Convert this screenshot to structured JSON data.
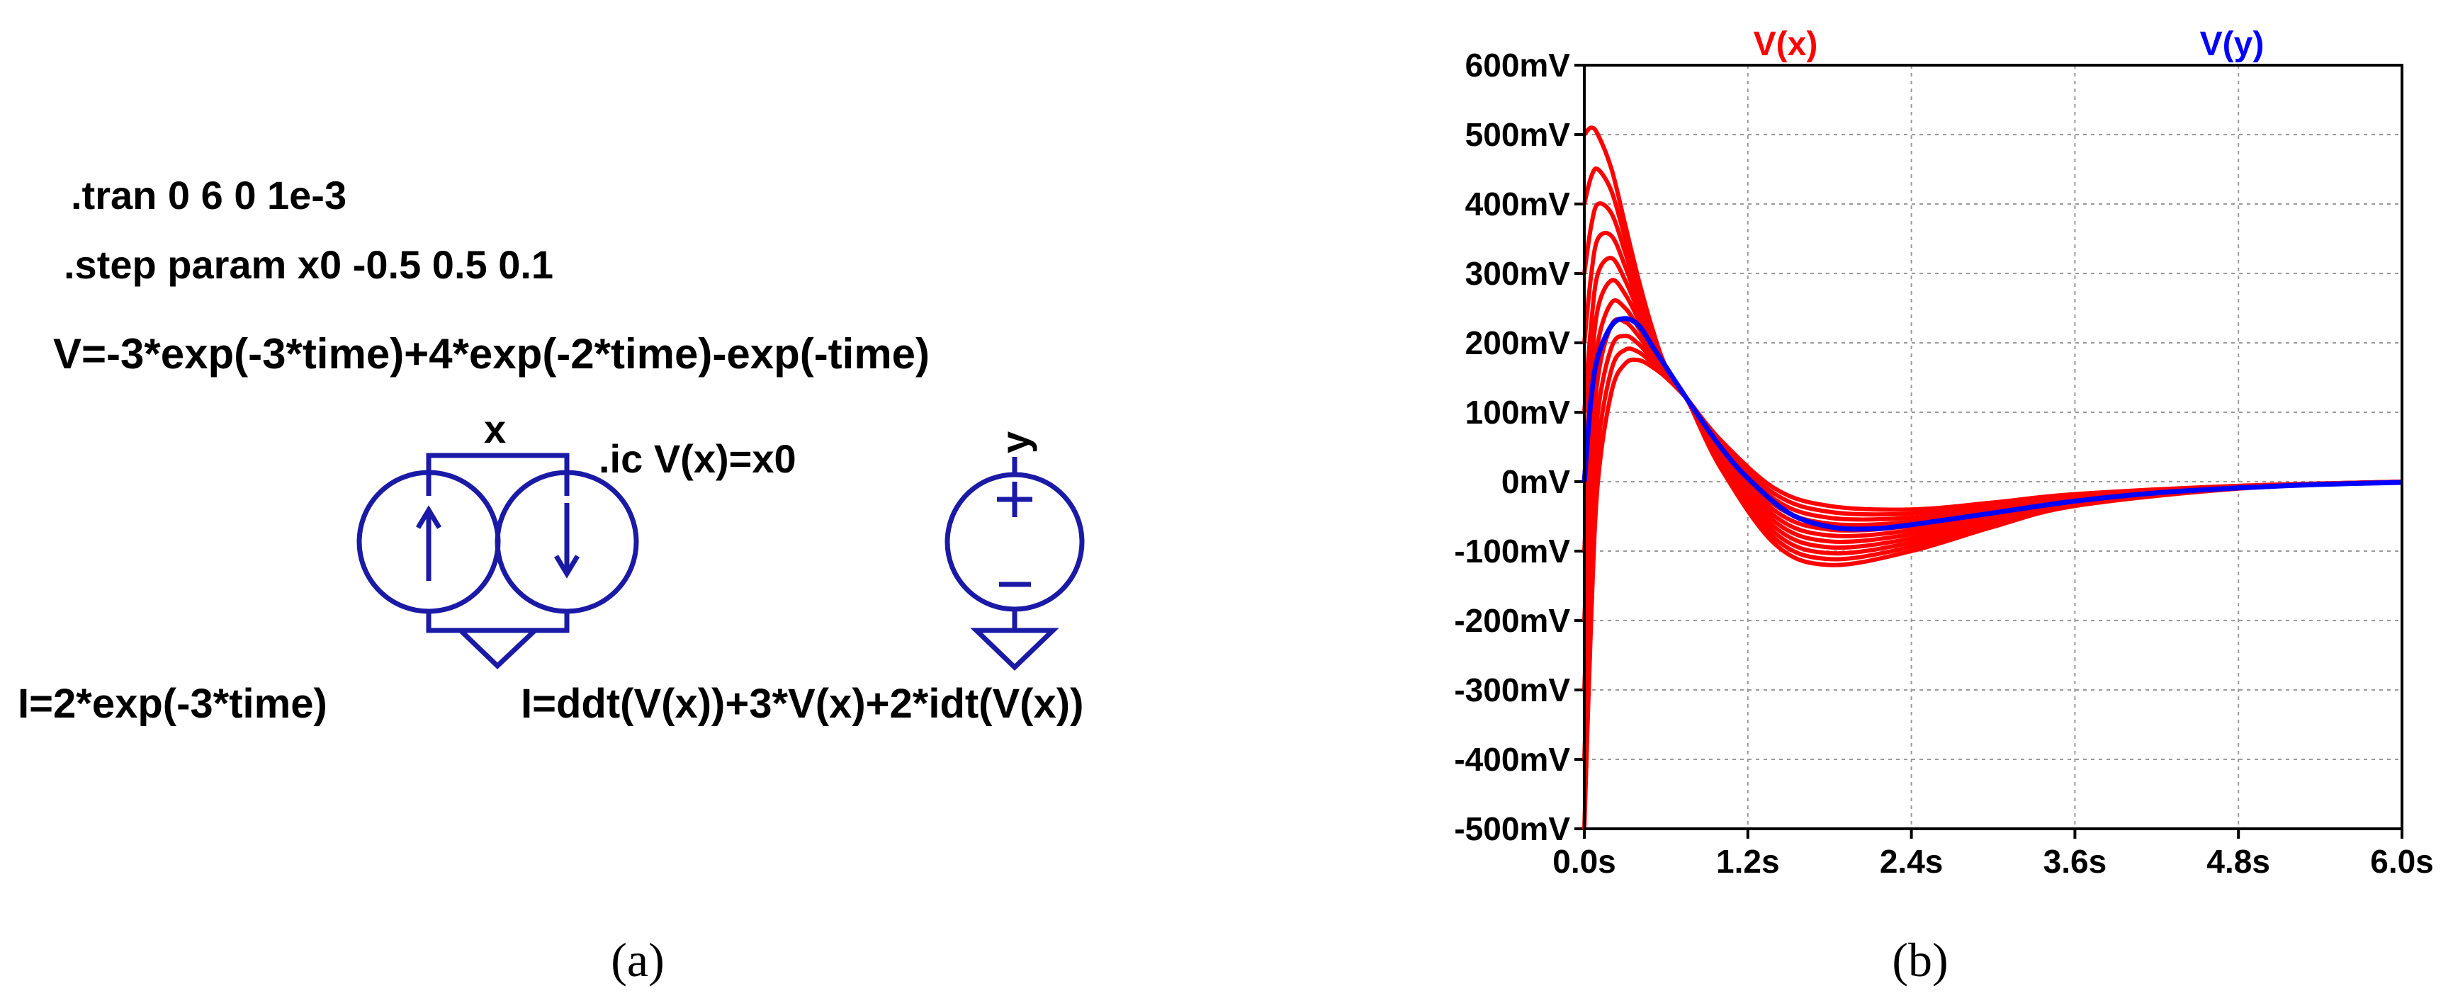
{
  "schematic": {
    "directive_tran": ".tran 0 6 0 1e-3",
    "directive_step": ".step param x0 -0.5 0.5 0.1",
    "source_v_expr": "V=-3*exp(-3*time)+4*exp(-2*time)-exp(-time)",
    "node_x_label": "x",
    "node_y_label": "y",
    "ic_directive": ".ic V(x)=x0",
    "source_i1_expr": "I=2*exp(-3*time)",
    "source_i2_expr": "I=ddt(V(x))+3*V(x)+2*idt(V(x))",
    "component_color": "#1a1aa6"
  },
  "captions": {
    "left": "(a)",
    "right": "(b)"
  },
  "chart_data": {
    "type": "line",
    "title": "",
    "xlabel": "",
    "ylabel": "",
    "xlim": [
      0,
      6
    ],
    "ylim": [
      -0.5,
      0.6
    ],
    "grid": true,
    "legend_placement": "top",
    "x_ticks": [
      0,
      1.2,
      2.4,
      3.6,
      4.8,
      6.0
    ],
    "x_tick_labels": [
      "0.0s",
      "1.2s",
      "2.4s",
      "3.6s",
      "4.8s",
      "6.0s"
    ],
    "y_ticks": [
      0.6,
      0.5,
      0.4,
      0.3,
      0.2,
      0.1,
      0.0,
      -0.1,
      -0.2,
      -0.3,
      -0.4,
      -0.5
    ],
    "y_tick_labels": [
      "600mV",
      "500mV",
      "400mV",
      "300mV",
      "200mV",
      "100mV",
      "0mV",
      "-100mV",
      "-200mV",
      "-300mV",
      "-400mV",
      "-500mV"
    ],
    "series": [
      {
        "name": "V(x)",
        "color": "#ff0000",
        "description_of_family": "stepped initial condition x0",
        "x0_values": [
          -0.5,
          -0.4,
          -0.3,
          -0.2,
          -0.1,
          0.0,
          0.1,
          0.2,
          0.3,
          0.4,
          0.5
        ],
        "points": [
          {
            "x0": -0.5,
            "x": [
              0,
              0.05,
              0.1,
              0.2,
              0.3,
              0.4,
              0.5,
              0.6,
              0.75,
              1.0,
              1.4,
              1.8,
              2.4,
              3.0,
              3.6,
              4.8,
              6.0
            ],
            "y": [
              -0.5,
              -0.2,
              0.0,
              0.13,
              0.17,
              0.175,
              0.165,
              0.15,
              0.12,
              0.06,
              -0.01,
              -0.035,
              -0.04,
              -0.03,
              -0.018,
              -0.006,
              0.0
            ]
          },
          {
            "x0": 0.5,
            "x": [
              0,
              0.05,
              0.1,
              0.2,
              0.3,
              0.4,
              0.5,
              0.6,
              0.75,
              1.0,
              1.4,
              1.8,
              2.4,
              3.0,
              3.6,
              4.8,
              6.0
            ],
            "y": [
              0.5,
              0.51,
              0.5,
              0.45,
              0.37,
              0.29,
              0.22,
              0.165,
              0.12,
              0.02,
              -0.09,
              -0.12,
              -0.1,
              -0.065,
              -0.035,
              -0.01,
              0.0
            ]
          }
        ]
      },
      {
        "name": "V(y)",
        "color": "#0000ff",
        "x": [
          0,
          0.05,
          0.1,
          0.2,
          0.3,
          0.4,
          0.5,
          0.6,
          0.75,
          1.0,
          1.2,
          1.5,
          1.8,
          2.1,
          2.4,
          3.0,
          3.6,
          4.2,
          4.8,
          5.4,
          6.0
        ],
        "y": [
          0,
          0.12,
          0.18,
          0.225,
          0.235,
          0.225,
          0.195,
          0.165,
          0.12,
          0.05,
          0.005,
          -0.045,
          -0.065,
          -0.068,
          -0.062,
          -0.045,
          -0.028,
          -0.016,
          -0.009,
          -0.004,
          -0.001
        ]
      }
    ]
  }
}
